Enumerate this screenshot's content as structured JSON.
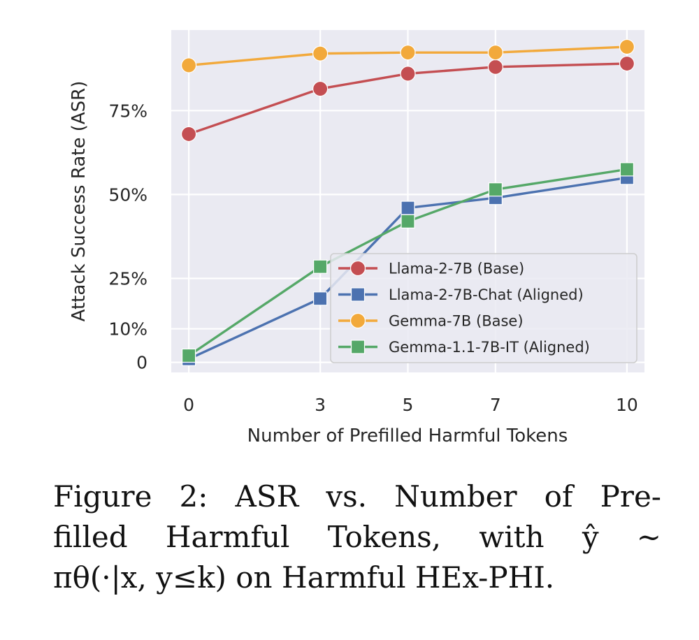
{
  "chart_data": {
    "type": "line",
    "x": [
      0,
      3,
      5,
      7,
      10
    ],
    "xlabel": "Number of Prefilled Harmful Tokens",
    "ylabel": "Attack Success Rate (ASR)",
    "x_ticks": [
      "0",
      "3",
      "5",
      "7",
      "10"
    ],
    "y_ticks": [
      {
        "value": 0,
        "label": "0"
      },
      {
        "value": 10,
        "label": "10%"
      },
      {
        "value": 25,
        "label": "25%"
      },
      {
        "value": 50,
        "label": "50%"
      },
      {
        "value": 75,
        "label": "75%"
      }
    ],
    "xlim": [
      -0.4,
      10.4
    ],
    "ylim": [
      -3,
      99
    ],
    "grid": true,
    "legend_position": "lower-right",
    "series": [
      {
        "name": "Llama-2-7B (Base)",
        "marker": "circle",
        "color": "#c44e52",
        "values": [
          68,
          81.5,
          86,
          88,
          89
        ]
      },
      {
        "name": "Llama-2-7B-Chat (Aligned)",
        "marker": "square",
        "color": "#4c72b0",
        "values": [
          1,
          19,
          46,
          49,
          55
        ]
      },
      {
        "name": "Gemma-7B (Base)",
        "marker": "circle",
        "color": "#f2a93b",
        "values": [
          88.5,
          92,
          92.3,
          92.3,
          94
        ]
      },
      {
        "name": "Gemma-1.1-7B-IT (Aligned)",
        "marker": "square",
        "color": "#55a868",
        "values": [
          2,
          28.5,
          42,
          51.5,
          57.5
        ]
      }
    ]
  },
  "caption": {
    "line1": "Figure 2:  ASR vs.  Number of Pre-",
    "line2": "filled  Harmful  Tokens,  with  ŷ  ∼",
    "line3": "πθ(·|x, y≤k) on Harmful HEx-PHI."
  }
}
